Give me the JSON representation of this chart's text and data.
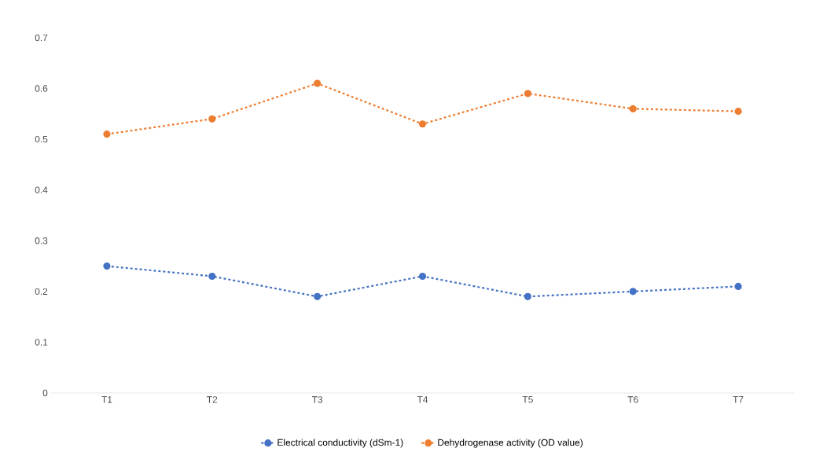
{
  "chart_data": {
    "type": "line",
    "categories": [
      "T1",
      "T2",
      "T3",
      "T4",
      "T5",
      "T6",
      "T7"
    ],
    "series": [
      {
        "name": "Electrical conductivity (dSm-1)",
        "color": "#4472c4",
        "values": [
          0.25,
          0.23,
          0.19,
          0.23,
          0.19,
          0.2,
          0.21
        ]
      },
      {
        "name": "Dehydrogenase activity (OD value)",
        "color": "#ed7d31",
        "values": [
          0.51,
          0.54,
          0.61,
          0.53,
          0.59,
          0.56,
          0.555
        ]
      }
    ],
    "ylim": [
      0,
      0.7
    ],
    "yticks": [
      0,
      0.1,
      0.2,
      0.3,
      0.4,
      0.5,
      0.6,
      0.7
    ],
    "grid": false,
    "legend": "bottom",
    "marker": "circle",
    "line_style": "dashed"
  }
}
